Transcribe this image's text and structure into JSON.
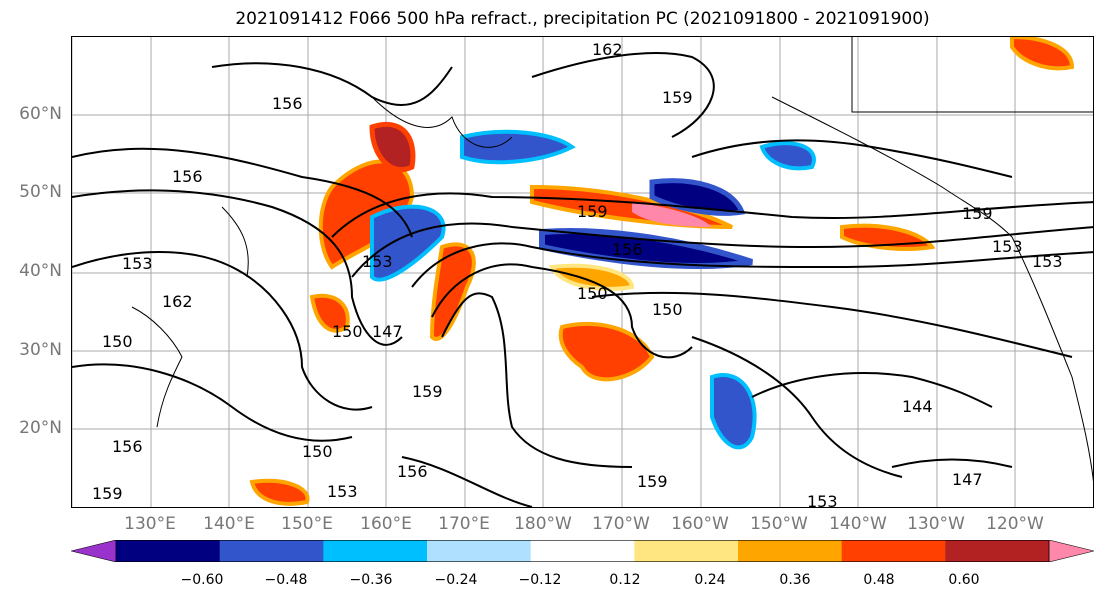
{
  "title": "2021091412 F066 500 hPa refract., precipitation PC (2021091800 - 2021091900)",
  "lat_labels": [
    "60°N",
    "50°N",
    "40°N",
    "30°N",
    "20°N"
  ],
  "lon_labels": [
    "130°E",
    "140°E",
    "150°E",
    "160°E",
    "170°E",
    "180°W",
    "170°W",
    "160°W",
    "150°W",
    "140°W",
    "130°W",
    "120°W"
  ],
  "colorbar": {
    "colors": [
      "#9933cc",
      "#000080",
      "#3355cc",
      "#00bfff",
      "#b0e0ff",
      "#ffffff",
      "#ffe680",
      "#ffa500",
      "#ff4000",
      "#b22222",
      "#ff88aa"
    ],
    "tick_labels": [
      "−0.60",
      "−0.48",
      "−0.36",
      "−0.24",
      "−0.12",
      "0.12",
      "0.24",
      "0.36",
      "0.48",
      "0.60"
    ]
  },
  "contour_labels": [
    "162",
    "159",
    "156",
    "156",
    "153",
    "162",
    "159",
    "150",
    "147",
    "153",
    "159",
    "156",
    "150",
    "150",
    "159",
    "156",
    "153",
    "150",
    "153",
    "156",
    "144",
    "147",
    "153",
    "159",
    "159",
    "150",
    "153"
  ]
}
